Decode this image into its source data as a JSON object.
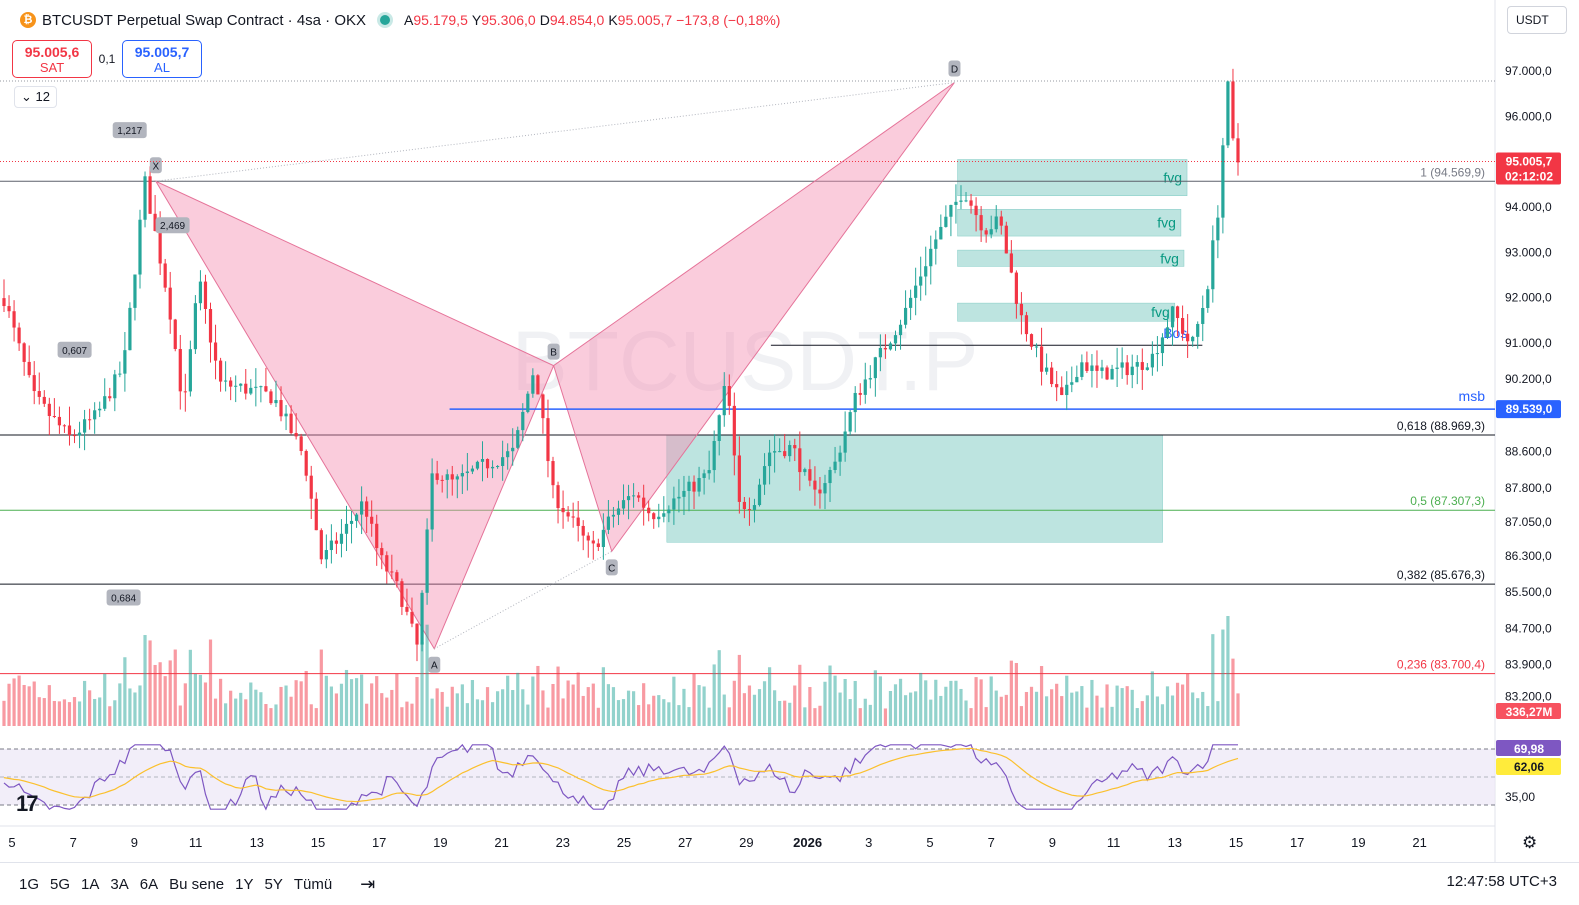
{
  "header": {
    "title": "BTCUSDT Perpetual Swap Contract · 4sa · OKX",
    "logo_glyph": "₿",
    "ohlc": [
      {
        "k": "A",
        "v": "95.179,5"
      },
      {
        "k": "Y",
        "v": "95.306,0"
      },
      {
        "k": "D",
        "v": "94.854,0"
      },
      {
        "k": "K",
        "v": "95.005,7"
      },
      {
        "k": "",
        "v": "−173,8 (−0,18%)"
      }
    ],
    "currency": "USDT"
  },
  "trade": {
    "sell_price": "95.005,6",
    "sell_label": "SAT",
    "spread": "0,1",
    "buy_price": "95.005,7",
    "buy_label": "AL"
  },
  "indicator_count": "12",
  "watermark": "BTCUSDT.P",
  "footer": {
    "ranges": [
      "1G",
      "5G",
      "1A",
      "3A",
      "6A",
      "Bu sene",
      "1Y",
      "5Y",
      "Tümü"
    ],
    "calendar_icon": "calendar-range-icon",
    "time": "12:47:58 UTC+3",
    "tv_logo": "17"
  },
  "colors": {
    "up": "#26a69a",
    "down": "#f23645",
    "harmonic": "#f48fb1",
    "fvg": "#b2dfdb",
    "msb": "#2962ff",
    "rsi": "#7e57c2",
    "rsi_ma": "#fbc02d"
  },
  "chart_data": {
    "type": "candlestick",
    "symbol": "BTCUSDT.P",
    "timeframe": "4sa",
    "ylim": [
      82500,
      97600
    ],
    "y_ticks": [
      {
        "v": 97000,
        "label": "97.000,0"
      },
      {
        "v": 96000,
        "label": "96.000,0"
      },
      {
        "v": 94000,
        "label": "94.000,0"
      },
      {
        "v": 93000,
        "label": "93.000,0"
      },
      {
        "v": 92000,
        "label": "92.000,0"
      },
      {
        "v": 91000,
        "label": "91.000,0"
      },
      {
        "v": 90200,
        "label": "90.200,0"
      },
      {
        "v": 88600,
        "label": "88.600,0"
      },
      {
        "v": 87800,
        "label": "87.800,0"
      },
      {
        "v": 87050,
        "label": "87.050,0"
      },
      {
        "v": 86300,
        "label": "86.300,0"
      },
      {
        "v": 85500,
        "label": "85.500,0"
      },
      {
        "v": 84700,
        "label": "84.700,0"
      },
      {
        "v": 83900,
        "label": "83.900,0"
      },
      {
        "v": 83200,
        "label": "83.200,0"
      }
    ],
    "x_ticks": [
      "5",
      "7",
      "9",
      "11",
      "13",
      "15",
      "17",
      "19",
      "21",
      "23",
      "25",
      "27",
      "29",
      "2026",
      "3",
      "5",
      "7",
      "9",
      "11",
      "13",
      "15",
      "17",
      "19",
      "21"
    ],
    "last_price": {
      "value": 95005.7,
      "label": "95.005,7",
      "countdown": "02:12:02"
    },
    "volume_label": "336,27M",
    "harmonic": {
      "points": [
        {
          "name": "X",
          "x": 9.7,
          "y": 94570
        },
        {
          "name": "A",
          "x": 18.8,
          "y": 84250
        },
        {
          "name": "B",
          "x": 22.7,
          "y": 90500
        },
        {
          "name": "C",
          "x": 24.6,
          "y": 86400
        },
        {
          "name": "D",
          "x": 35.8,
          "y": 96750
        }
      ],
      "ratios": [
        {
          "label": "0,607",
          "x": 14.2,
          "y": 90850
        },
        {
          "label": "0,684",
          "x": 21.4,
          "y": 85380
        },
        {
          "label": "2,469",
          "x": 28.6,
          "y": 93600
        },
        {
          "label": "1,217",
          "x": 22.3,
          "y": 95700
        }
      ]
    },
    "fib_levels": [
      {
        "ratio": "1",
        "value": 94569.9,
        "label": "1 (94.569,9)"
      },
      {
        "ratio": "0,618",
        "value": 88969.3,
        "label": "0,618 (88.969,3)"
      },
      {
        "ratio": "0,5",
        "value": 87307.3,
        "label": "0,5 (87.307,3)"
      },
      {
        "ratio": "0,382",
        "value": 85676.3,
        "label": "0,382 (85.676,3)"
      },
      {
        "ratio": "0,236",
        "value": 83700.4,
        "label": "0,236 (83.700,4)"
      }
    ],
    "msb": {
      "label": "msb",
      "value": 89539.0,
      "value_label": "89.539,0",
      "x_start": 19.3
    },
    "bos": {
      "label": "Bos",
      "value": 90950,
      "x_start": 29.8,
      "x_end": 43.9
    },
    "zones": [
      {
        "label": "",
        "x0": 26.4,
        "x1": 42.6,
        "y0": 86600,
        "y1": 88970
      },
      {
        "label": "fvg",
        "x0": 35.9,
        "x1": 43.4,
        "y0": 94250,
        "y1": 95050
      },
      {
        "label": "fvg",
        "x0": 35.9,
        "x1": 43.2,
        "y0": 93360,
        "y1": 93950
      },
      {
        "label": "fvg",
        "x0": 35.9,
        "x1": 43.3,
        "y0": 92690,
        "y1": 93050
      },
      {
        "label": "fvg",
        "x0": 35.9,
        "x1": 43.0,
        "y0": 91480,
        "y1": 91880
      }
    ],
    "rsi": {
      "value": 69.98,
      "value_label": "69,98",
      "ma": 62.06,
      "ma_label": "62,06",
      "level_label": "35,00",
      "upper": 75,
      "lower": 35
    }
  }
}
